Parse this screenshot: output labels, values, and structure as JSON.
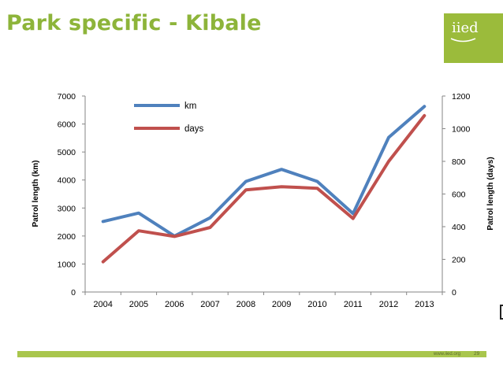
{
  "slide": {
    "title": "Park specific - Kibale",
    "logo_text": "iied",
    "footer_url": "www.iied.org",
    "page_number": "29",
    "accent_color": "#9bbb3b"
  },
  "chart_data": {
    "type": "line",
    "title": "",
    "x": [
      "2004",
      "2005",
      "2006",
      "2007",
      "2008",
      "2009",
      "2010",
      "2011",
      "2012",
      "2013"
    ],
    "series": [
      {
        "name": "km",
        "axis": "left",
        "color": "#4f81bd",
        "values": [
          2520,
          2820,
          2000,
          2650,
          3950,
          4380,
          3950,
          2800,
          5520,
          6630
        ]
      },
      {
        "name": "days",
        "axis": "right",
        "color": "#c0504d",
        "values": [
          185,
          375,
          340,
          395,
          625,
          645,
          635,
          450,
          800,
          1080
        ]
      }
    ],
    "ylabel": "Patrol length (km)",
    "ylabel_right": "Patrol length (days)",
    "ylim": [
      0,
      7000
    ],
    "ylim_right": [
      0,
      1200
    ],
    "yticks": [
      "0",
      "1000",
      "2000",
      "3000",
      "4000",
      "5000",
      "6000",
      "7000"
    ],
    "yticks_right": [
      "0",
      "200",
      "400",
      "600",
      "800",
      "1000",
      "1200"
    ],
    "grid": false,
    "legend_position": "top-left"
  }
}
